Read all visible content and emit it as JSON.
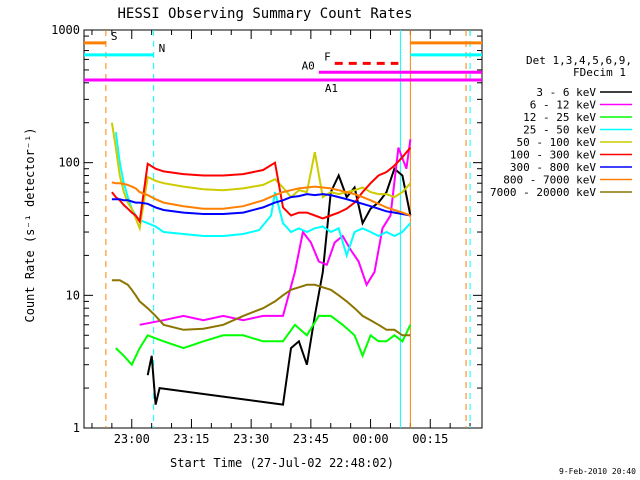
{
  "chart_data": {
    "type": "line",
    "title": "HESSI Observing Summary Count Rates",
    "xlabel": "Start Time (27-Jul-02 22:48:02)",
    "ylabel": "Count Rate (s⁻¹ detector⁻¹)",
    "x_unit": "minutes after 22:48:02",
    "xlim": [
      0,
      100
    ],
    "ylim": [
      1,
      1000
    ],
    "y_scale": "log",
    "x_tick_labels": [
      "23:00",
      "23:15",
      "23:30",
      "23:45",
      "00:00",
      "00:15"
    ],
    "y_tick_labels": [
      "1",
      "10",
      "100",
      "1000"
    ],
    "grid": false,
    "legend_header": [
      "Det 1,3,4,5,6,9,",
      "FDecim 1"
    ],
    "legend_placement": "right",
    "footer_date": "9-Feb-2010 20:40",
    "series": [
      {
        "name": "3 - 6 keV",
        "color": "#000000",
        "points": [
          [
            0,
            null
          ],
          [
            16,
            2.5
          ],
          [
            17,
            3.5
          ],
          [
            18,
            1.5
          ],
          [
            19,
            2
          ],
          [
            50,
            1.5
          ],
          [
            52,
            4
          ],
          [
            54,
            4.5
          ],
          [
            56,
            3
          ],
          [
            58,
            7
          ],
          [
            60,
            15
          ],
          [
            62,
            60
          ],
          [
            64,
            80
          ],
          [
            66,
            55
          ],
          [
            68,
            65
          ],
          [
            70,
            35
          ],
          [
            72,
            45
          ],
          [
            74,
            50
          ],
          [
            76,
            60
          ],
          [
            78,
            90
          ],
          [
            80,
            80
          ],
          [
            82,
            40
          ]
        ]
      },
      {
        "name": "6 - 12 keV",
        "color": "#ff00ff",
        "points": [
          [
            14,
            6
          ],
          [
            20,
            6.5
          ],
          [
            25,
            7
          ],
          [
            30,
            6.5
          ],
          [
            35,
            7
          ],
          [
            40,
            6.5
          ],
          [
            45,
            7
          ],
          [
            50,
            7
          ],
          [
            53,
            15
          ],
          [
            55,
            30
          ],
          [
            57,
            25
          ],
          [
            59,
            18
          ],
          [
            61,
            17
          ],
          [
            63,
            25
          ],
          [
            65,
            28
          ],
          [
            67,
            22
          ],
          [
            69,
            18
          ],
          [
            71,
            12
          ],
          [
            73,
            15
          ],
          [
            75,
            32
          ],
          [
            77,
            40
          ],
          [
            79,
            130
          ],
          [
            81,
            90
          ],
          [
            82,
            150
          ]
        ]
      },
      {
        "name": "12 - 25 keV",
        "color": "#00ff00",
        "points": [
          [
            8,
            4
          ],
          [
            10,
            3.5
          ],
          [
            12,
            3
          ],
          [
            14,
            4
          ],
          [
            16,
            5
          ],
          [
            20,
            4.5
          ],
          [
            25,
            4
          ],
          [
            30,
            4.5
          ],
          [
            35,
            5
          ],
          [
            40,
            5
          ],
          [
            45,
            4.5
          ],
          [
            50,
            4.5
          ],
          [
            53,
            6
          ],
          [
            56,
            5
          ],
          [
            59,
            7
          ],
          [
            62,
            7
          ],
          [
            65,
            6
          ],
          [
            68,
            5
          ],
          [
            70,
            3.5
          ],
          [
            72,
            5
          ],
          [
            74,
            4.5
          ],
          [
            76,
            4.5
          ],
          [
            78,
            5
          ],
          [
            80,
            4.5
          ],
          [
            82,
            6
          ]
        ]
      },
      {
        "name": "25 - 50 keV",
        "color": "#00ffff",
        "points": [
          [
            8,
            170
          ],
          [
            9,
            100
          ],
          [
            10,
            70
          ],
          [
            11,
            55
          ],
          [
            12,
            45
          ],
          [
            13,
            40
          ],
          [
            14,
            37
          ],
          [
            16,
            35
          ],
          [
            18,
            33
          ],
          [
            20,
            30
          ],
          [
            25,
            29
          ],
          [
            30,
            28
          ],
          [
            35,
            28
          ],
          [
            40,
            29
          ],
          [
            44,
            31
          ],
          [
            47,
            40
          ],
          [
            48,
            60
          ],
          [
            50,
            35
          ],
          [
            52,
            30
          ],
          [
            54,
            32
          ],
          [
            56,
            30
          ],
          [
            58,
            32
          ],
          [
            60,
            33
          ],
          [
            62,
            30
          ],
          [
            64,
            32
          ],
          [
            66,
            20
          ],
          [
            68,
            30
          ],
          [
            70,
            32
          ],
          [
            72,
            30
          ],
          [
            74,
            28
          ],
          [
            76,
            30
          ],
          [
            78,
            28
          ],
          [
            80,
            30
          ],
          [
            82,
            35
          ]
        ]
      },
      {
        "name": "50 - 100 keV",
        "color": "#cccc00",
        "points": [
          [
            7,
            200
          ],
          [
            8,
            130
          ],
          [
            9,
            80
          ],
          [
            10,
            60
          ],
          [
            11,
            50
          ],
          [
            12,
            45
          ],
          [
            13,
            38
          ],
          [
            14,
            32
          ],
          [
            16,
            78
          ],
          [
            18,
            73
          ],
          [
            20,
            70
          ],
          [
            25,
            66
          ],
          [
            30,
            63
          ],
          [
            35,
            62
          ],
          [
            40,
            64
          ],
          [
            45,
            68
          ],
          [
            48,
            75
          ],
          [
            50,
            65
          ],
          [
            52,
            55
          ],
          [
            54,
            62
          ],
          [
            56,
            60
          ],
          [
            58,
            120
          ],
          [
            60,
            55
          ],
          [
            62,
            60
          ],
          [
            64,
            58
          ],
          [
            66,
            60
          ],
          [
            68,
            62
          ],
          [
            70,
            65
          ],
          [
            72,
            60
          ],
          [
            74,
            58
          ],
          [
            76,
            58
          ],
          [
            78,
            55
          ],
          [
            80,
            60
          ],
          [
            82,
            70
          ]
        ]
      },
      {
        "name": "100 - 300 keV",
        "color": "#ff0000",
        "points": [
          [
            7,
            60
          ],
          [
            8,
            55
          ],
          [
            9,
            52
          ],
          [
            10,
            48
          ],
          [
            11,
            45
          ],
          [
            12,
            42
          ],
          [
            13,
            40
          ],
          [
            14,
            36
          ],
          [
            16,
            98
          ],
          [
            18,
            90
          ],
          [
            20,
            86
          ],
          [
            25,
            82
          ],
          [
            30,
            80
          ],
          [
            35,
            80
          ],
          [
            40,
            82
          ],
          [
            45,
            88
          ],
          [
            48,
            100
          ],
          [
            50,
            46
          ],
          [
            52,
            40
          ],
          [
            54,
            42
          ],
          [
            56,
            42
          ],
          [
            58,
            40
          ],
          [
            60,
            38
          ],
          [
            62,
            40
          ],
          [
            64,
            42
          ],
          [
            66,
            45
          ],
          [
            68,
            50
          ],
          [
            70,
            60
          ],
          [
            72,
            70
          ],
          [
            74,
            80
          ],
          [
            76,
            85
          ],
          [
            78,
            95
          ],
          [
            80,
            110
          ],
          [
            82,
            130
          ]
        ]
      },
      {
        "name": "300 - 800 keV",
        "color": "#0000ff",
        "points": [
          [
            7,
            53
          ],
          [
            8,
            53
          ],
          [
            9,
            53
          ],
          [
            10,
            52
          ],
          [
            11,
            52
          ],
          [
            12,
            51
          ],
          [
            13,
            50
          ],
          [
            14,
            50
          ],
          [
            16,
            49
          ],
          [
            18,
            46
          ],
          [
            20,
            44
          ],
          [
            25,
            42
          ],
          [
            30,
            41
          ],
          [
            35,
            41
          ],
          [
            40,
            42
          ],
          [
            45,
            46
          ],
          [
            48,
            50
          ],
          [
            50,
            52
          ],
          [
            52,
            55
          ],
          [
            54,
            56
          ],
          [
            56,
            58
          ],
          [
            58,
            57
          ],
          [
            60,
            58
          ],
          [
            62,
            57
          ],
          [
            64,
            55
          ],
          [
            66,
            53
          ],
          [
            68,
            51
          ],
          [
            70,
            49
          ],
          [
            72,
            47
          ],
          [
            74,
            45
          ],
          [
            76,
            43
          ],
          [
            78,
            42
          ],
          [
            80,
            41
          ],
          [
            82,
            40
          ]
        ]
      },
      {
        "name": "800 - 7000 keV",
        "color": "#ff8000",
        "points": [
          [
            7,
            71
          ],
          [
            8,
            70
          ],
          [
            9,
            70
          ],
          [
            10,
            69
          ],
          [
            11,
            68
          ],
          [
            12,
            66
          ],
          [
            13,
            64
          ],
          [
            14,
            60
          ],
          [
            16,
            57
          ],
          [
            18,
            53
          ],
          [
            20,
            50
          ],
          [
            25,
            47
          ],
          [
            30,
            45
          ],
          [
            35,
            45
          ],
          [
            40,
            47
          ],
          [
            45,
            52
          ],
          [
            48,
            57
          ],
          [
            50,
            60
          ],
          [
            52,
            62
          ],
          [
            54,
            64
          ],
          [
            56,
            65
          ],
          [
            58,
            66
          ],
          [
            60,
            65
          ],
          [
            62,
            64
          ],
          [
            64,
            62
          ],
          [
            66,
            60
          ],
          [
            68,
            58
          ],
          [
            70,
            55
          ],
          [
            72,
            52
          ],
          [
            74,
            49
          ],
          [
            76,
            46
          ],
          [
            78,
            44
          ],
          [
            80,
            42
          ],
          [
            82,
            40
          ]
        ]
      },
      {
        "name": "7000 - 20000 keV",
        "color": "#8b7500",
        "points": [
          [
            7,
            13
          ],
          [
            8,
            13
          ],
          [
            9,
            13
          ],
          [
            10,
            12.5
          ],
          [
            11,
            12
          ],
          [
            12,
            11
          ],
          [
            13,
            10
          ],
          [
            14,
            9
          ],
          [
            16,
            8
          ],
          [
            18,
            7
          ],
          [
            20,
            6
          ],
          [
            25,
            5.5
          ],
          [
            30,
            5.6
          ],
          [
            35,
            6
          ],
          [
            40,
            7
          ],
          [
            45,
            8
          ],
          [
            48,
            9
          ],
          [
            50,
            10
          ],
          [
            52,
            11
          ],
          [
            54,
            11.5
          ],
          [
            56,
            12
          ],
          [
            58,
            12
          ],
          [
            60,
            11.5
          ],
          [
            62,
            11
          ],
          [
            64,
            10
          ],
          [
            66,
            9
          ],
          [
            68,
            8
          ],
          [
            70,
            7
          ],
          [
            72,
            6.5
          ],
          [
            74,
            6
          ],
          [
            76,
            5.5
          ],
          [
            78,
            5.5
          ],
          [
            80,
            5
          ],
          [
            82,
            5
          ]
        ]
      }
    ],
    "flags": [
      {
        "label": "S",
        "color": "#ff8000",
        "y": 800,
        "x_start": 0,
        "x_end": 5.5
      },
      {
        "label": "N",
        "color": "#00ffff",
        "y": 650,
        "x_start": 0,
        "x_end": 17.5
      },
      {
        "label": "A0",
        "color": "#ff00ff",
        "y": 480,
        "x_start": 59,
        "x_end": 100
      },
      {
        "label": "A1",
        "color": "#ff00ff",
        "y": 420,
        "x_start": 0,
        "x_end": 100
      },
      {
        "label": "F",
        "color": "#ff0000",
        "y": 560,
        "x_start": 63,
        "x_end": 79
      }
    ]
  }
}
